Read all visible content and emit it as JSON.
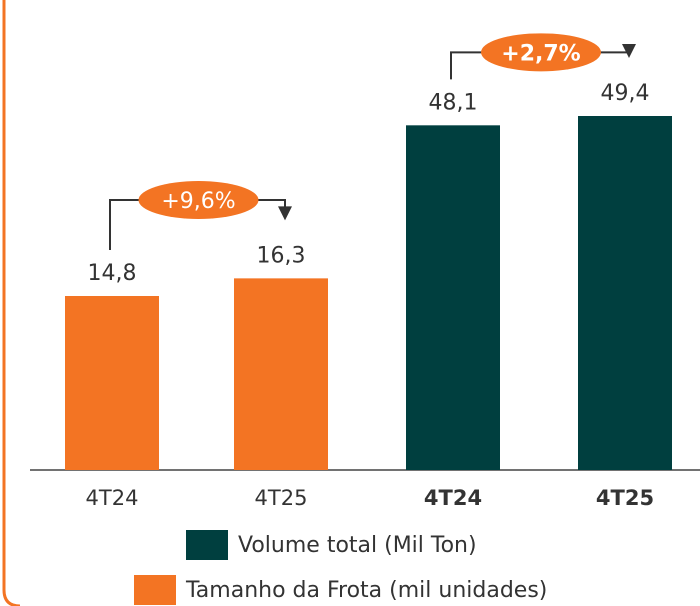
{
  "colors": {
    "orange": "#F37423",
    "dark_green": "#003F3F",
    "frame_orange": "#F37423",
    "text": "#333333",
    "pill_text": "#FFFFFF"
  },
  "chart_data": {
    "type": "bar",
    "groups": [
      {
        "name": "Tamanho da Frota (mil unidades)",
        "color": "#F37423",
        "categories": [
          "4T24",
          "4T25"
        ],
        "values": [
          14.8,
          16.3
        ],
        "value_labels": [
          "14,8",
          "16,3"
        ],
        "growth_label": "+9,6%"
      },
      {
        "name": "Volume total (Mil Ton)",
        "color": "#003F3F",
        "categories": [
          "4T24",
          "4T25"
        ],
        "values": [
          48.1,
          49.4
        ],
        "value_labels": [
          "48,1",
          "49,4"
        ],
        "growth_label": "+2,7%"
      }
    ],
    "legend": [
      {
        "label": "Volume total (Mil Ton)",
        "color": "#003F3F"
      },
      {
        "label": "Tamanho da Frota (mil unidades)",
        "color": "#F37423"
      }
    ],
    "legend_position": "bottom",
    "grid": false
  }
}
